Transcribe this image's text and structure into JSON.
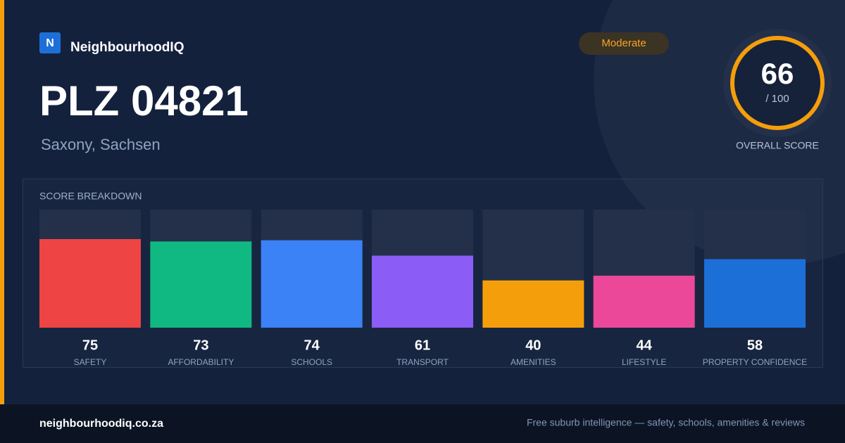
{
  "brand": {
    "logo_letter": "N",
    "name": "NeighbourhoodIQ"
  },
  "badge": "Moderate",
  "heading": {
    "title": "PLZ 04821",
    "subtitle": "Saxony, Sachsen"
  },
  "overall": {
    "score": "66",
    "out_of": "/ 100",
    "label": "OVERALL SCORE"
  },
  "chart_data": {
    "type": "bar",
    "title": "SCORE BREAKDOWN",
    "categories": [
      "SAFETY",
      "AFFORDABILITY",
      "SCHOOLS",
      "TRANSPORT",
      "AMENITIES",
      "LIFESTYLE",
      "PROPERTY CONFIDENCE"
    ],
    "values": [
      75,
      73,
      74,
      61,
      40,
      44,
      58
    ],
    "colors": [
      "#ef4444",
      "#10b981",
      "#3b82f6",
      "#8b5cf6",
      "#f59e0b",
      "#ec4899",
      "#1d6fd8"
    ],
    "ylim": [
      0,
      100
    ]
  },
  "footer": {
    "site": "neighbourhoodiq.co.za",
    "tagline": "Free suburb intelligence — safety, schools, amenities & reviews"
  }
}
